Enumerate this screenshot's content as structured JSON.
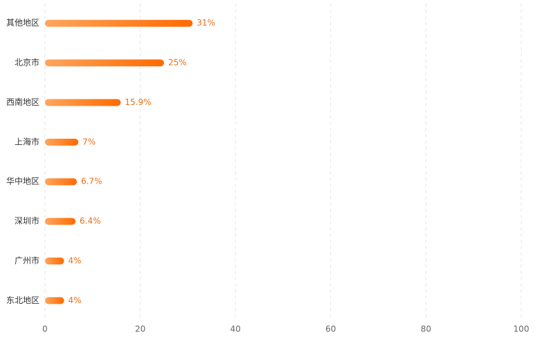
{
  "chart_data": {
    "type": "hbar",
    "categories": [
      "其他地区",
      "北京市",
      "西南地区",
      "上海市",
      "华中地区",
      "深圳市",
      "广州市",
      "东北地区"
    ],
    "values": [
      31,
      25,
      15.9,
      7,
      6.7,
      6.4,
      4,
      4
    ],
    "value_labels": [
      "31%",
      "25%",
      "15.9%",
      "7%",
      "6.7%",
      "6.4%",
      "4%",
      "4%"
    ],
    "colors": [
      "#ffa55c",
      "#ff6a00"
    ],
    "xlim": [
      0,
      100
    ],
    "xticks": [
      0,
      20,
      40,
      60,
      80,
      100
    ],
    "grid": true
  }
}
